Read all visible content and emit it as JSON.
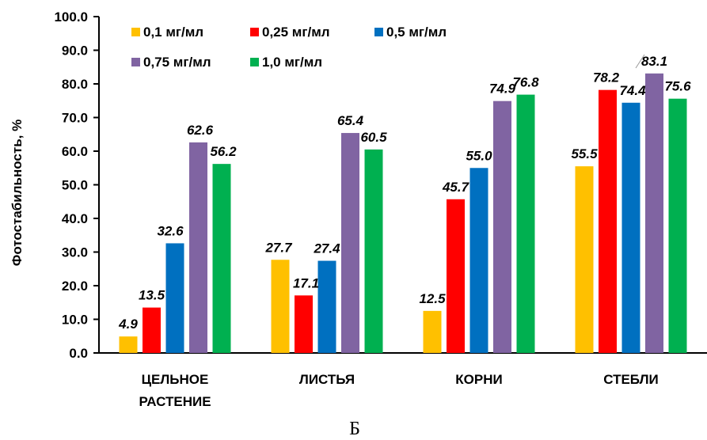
{
  "chart_data": {
    "type": "bar",
    "title": "",
    "xlabel": "",
    "ylabel": "Фотостабильность, %",
    "ylim": [
      0,
      100
    ],
    "yticks": [
      "0.0",
      "10.0",
      "20.0",
      "30.0",
      "40.0",
      "50.0",
      "60.0",
      "70.0",
      "80.0",
      "90.0",
      "100.0"
    ],
    "categories": [
      [
        "ЦЕЛЬНОЕ",
        "РАСТЕНИЕ"
      ],
      [
        "ЛИСТЬЯ"
      ],
      [
        "КОРНИ"
      ],
      [
        "СТЕБЛИ"
      ]
    ],
    "series": [
      {
        "name": "0,1 мг/мл",
        "color": "#FFC000",
        "values": [
          4.9,
          27.7,
          12.5,
          55.5
        ]
      },
      {
        "name": "0,25 мг/мл",
        "color": "#FF0000",
        "values": [
          13.5,
          17.1,
          45.7,
          78.2
        ]
      },
      {
        "name": "0,5 мг/мл",
        "color": "#0070C0",
        "values": [
          32.6,
          27.4,
          55.0,
          74.4
        ]
      },
      {
        "name": "0,75 мг/мл",
        "color": "#8064A2",
        "values": [
          62.6,
          65.4,
          74.9,
          83.1
        ]
      },
      {
        "name": "1,0 мг/мл",
        "color": "#00B050",
        "values": [
          56.2,
          60.5,
          76.8,
          75.6
        ]
      }
    ],
    "grid": false,
    "legend_position": "top-left"
  },
  "caption": "Б"
}
